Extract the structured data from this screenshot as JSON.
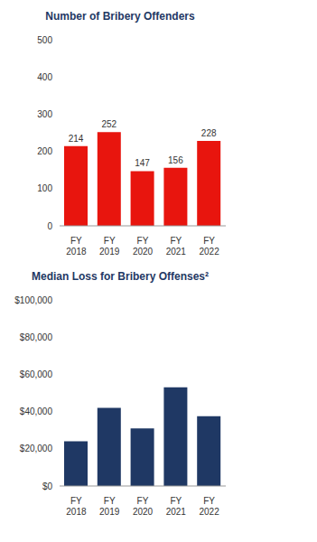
{
  "chart_data": [
    {
      "type": "bar",
      "title": "Number of Bribery Offenders",
      "categories": [
        "FY 2018",
        "FY 2019",
        "FY 2020",
        "FY 2021",
        "FY 2022"
      ],
      "values": [
        214,
        252,
        147,
        156,
        228
      ],
      "color": "#e8150e",
      "ylim": [
        0,
        500
      ],
      "yticks": [
        0,
        100,
        200,
        300,
        400,
        500
      ],
      "grid": false,
      "data_labels": true
    },
    {
      "type": "bar",
      "title": "Median Loss for Bribery Offenses²",
      "categories": [
        "FY 2018",
        "FY 2019",
        "FY 2020",
        "FY 2021",
        "FY 2022"
      ],
      "values": [
        24000,
        42000,
        31000,
        53000,
        37500
      ],
      "color": "#1f3864",
      "ylim": [
        0,
        100000
      ],
      "yticks": [
        {
          "value": 0,
          "label": "$0"
        },
        {
          "value": 20000,
          "label": "$20,000"
        },
        {
          "value": 40000,
          "label": "$40,000"
        },
        {
          "value": 60000,
          "label": "$60,000"
        },
        {
          "value": 80000,
          "label": "$80,000"
        },
        {
          "value": 100000,
          "label": "$100,000"
        }
      ],
      "grid": false,
      "data_labels": false
    }
  ]
}
